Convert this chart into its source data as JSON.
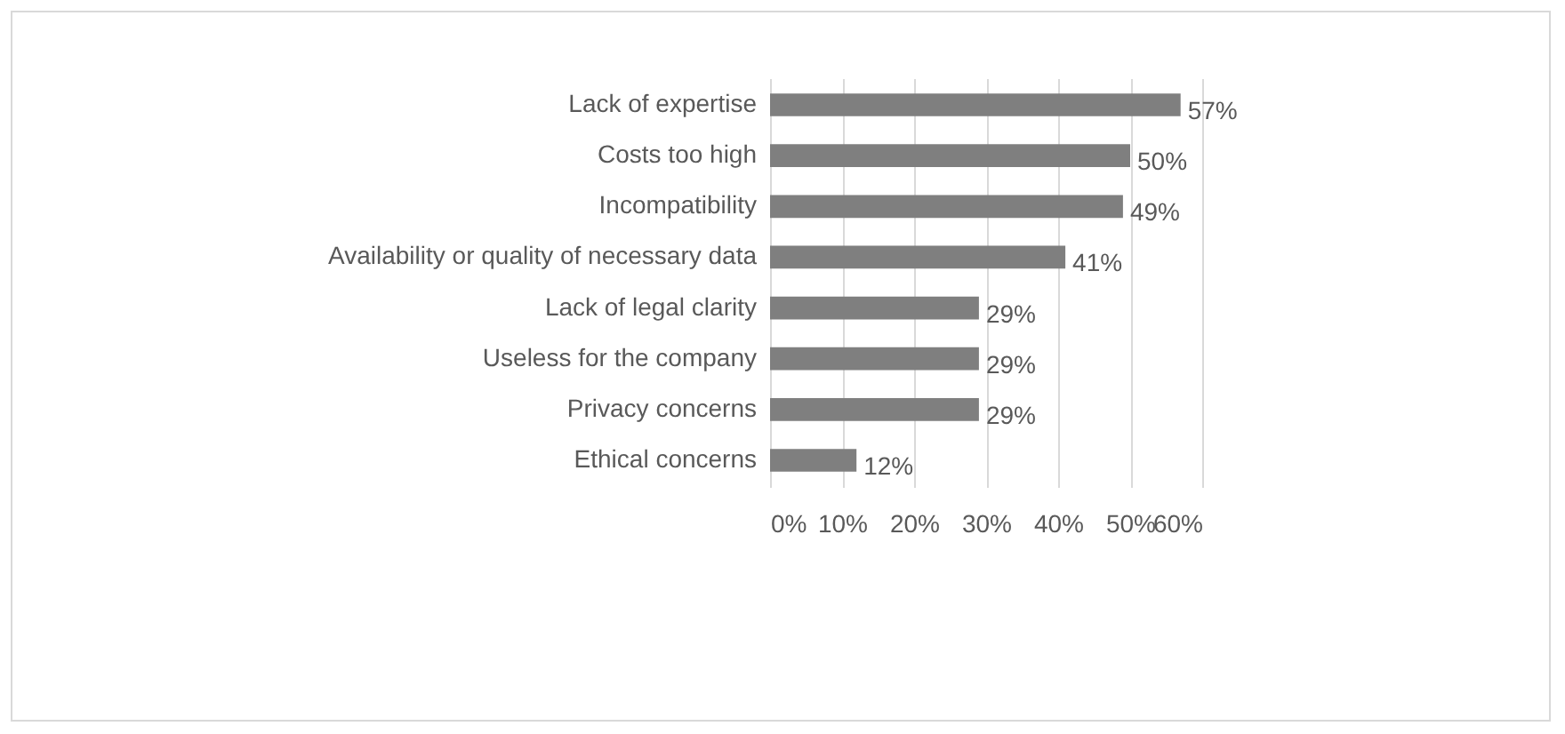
{
  "chart_data": {
    "type": "bar",
    "orientation": "horizontal",
    "categories": [
      "Lack of expertise",
      "Costs too high",
      "Incompatibility",
      "Availability or quality of necessary data",
      "Lack of legal clarity",
      "Useless for the company",
      "Privacy concerns",
      "Ethical concerns"
    ],
    "values": [
      57,
      50,
      49,
      41,
      29,
      29,
      29,
      12
    ],
    "value_labels": [
      "57%",
      "50%",
      "49%",
      "41%",
      "29%",
      "29%",
      "29%",
      "12%"
    ],
    "color": "#7f7f7f",
    "xlim": [
      0,
      60
    ],
    "xticks": [
      {
        "value": 0,
        "label": "0%"
      },
      {
        "value": 10,
        "label": "10%"
      },
      {
        "value": 20,
        "label": "20%"
      },
      {
        "value": 30,
        "label": "30%"
      },
      {
        "value": 40,
        "label": "40%"
      },
      {
        "value": 50,
        "label": "50%"
      },
      {
        "value": 60,
        "label": "60%"
      }
    ],
    "grid": "x"
  }
}
